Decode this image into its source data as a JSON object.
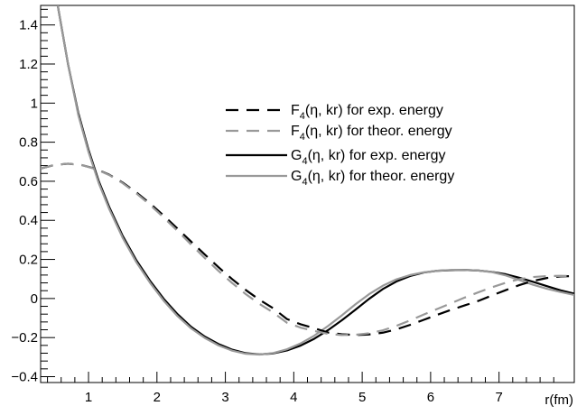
{
  "chart_data": {
    "type": "line",
    "title": "",
    "xlabel": "r(fm)",
    "ylabel": "",
    "xlim": [
      0.3,
      8.1
    ],
    "ylim": [
      -0.43,
      1.5
    ],
    "x_ticks": [
      1,
      2,
      3,
      4,
      5,
      6,
      7
    ],
    "x_tick_labels": [
      "1",
      "2",
      "3",
      "4",
      "5",
      "6",
      "7"
    ],
    "y_ticks": [
      -0.4,
      -0.2,
      0,
      0.2,
      0.4,
      0.6,
      0.8,
      1,
      1.2,
      1.4
    ],
    "y_tick_labels": [
      "−0.4",
      "−0.2",
      "0",
      "0.2",
      "0.4",
      "0.6",
      "0.8",
      "1",
      "1.2",
      "1.4"
    ],
    "grid": false,
    "legend_position": "upper-right",
    "series": [
      {
        "name_main": "F",
        "name_sub": "4",
        "name_rest": "(η, kr) for exp. energy",
        "color": "#000000",
        "dash": "dashed",
        "x": [
          0.3,
          0.5,
          0.7,
          0.9,
          1.1,
          1.3,
          1.5,
          1.7,
          1.9,
          2.1,
          2.3,
          2.5,
          2.7,
          2.9,
          3.1,
          3.3,
          3.5,
          3.7,
          3.9,
          4.1,
          4.3,
          4.5,
          4.7,
          4.9,
          5.1,
          5.3,
          5.5,
          5.7,
          5.9,
          6.1,
          6.3,
          6.5,
          6.7,
          6.9,
          7.1,
          7.3,
          7.5,
          7.7,
          7.9,
          8.1
        ],
        "y": [
          0.665,
          0.683,
          0.69,
          0.683,
          0.664,
          0.634,
          0.593,
          0.543,
          0.486,
          0.424,
          0.358,
          0.291,
          0.225,
          0.16,
          0.099,
          0.043,
          -0.007,
          -0.05,
          -0.105,
          -0.132,
          -0.152,
          -0.174,
          -0.183,
          -0.187,
          -0.184,
          -0.175,
          -0.158,
          -0.135,
          -0.109,
          -0.083,
          -0.058,
          -0.035,
          -0.012,
          0.016,
          0.043,
          0.069,
          0.09,
          0.105,
          0.113,
          0.115
        ]
      },
      {
        "name_main": "F",
        "name_sub": "4",
        "name_rest": "(η, kr) for theor. energy",
        "color": "#999999",
        "dash": "dashed",
        "x": [
          0.3,
          0.5,
          0.7,
          0.9,
          1.1,
          1.3,
          1.5,
          1.7,
          1.9,
          2.1,
          2.3,
          2.5,
          2.7,
          2.9,
          3.1,
          3.3,
          3.5,
          3.7,
          3.9,
          4.1,
          4.3,
          4.5,
          4.7,
          4.9,
          5.1,
          5.3,
          5.5,
          5.7,
          5.9,
          6.1,
          6.3,
          6.5,
          6.7,
          6.9,
          7.1,
          7.3,
          7.5,
          7.7,
          7.9,
          8.1
        ],
        "y": [
          0.665,
          0.683,
          0.69,
          0.683,
          0.663,
          0.632,
          0.59,
          0.538,
          0.479,
          0.414,
          0.346,
          0.276,
          0.207,
          0.141,
          0.079,
          0.022,
          -0.028,
          -0.072,
          -0.124,
          -0.149,
          -0.166,
          -0.181,
          -0.187,
          -0.186,
          -0.178,
          -0.163,
          -0.14,
          -0.112,
          -0.082,
          -0.053,
          -0.024,
          0.005,
          0.032,
          0.058,
          0.081,
          0.099,
          0.11,
          0.115,
          0.116,
          0.115
        ]
      },
      {
        "name_main": "G",
        "name_sub": "4",
        "name_rest": "(η, kr) for exp. energy",
        "color": "#000000",
        "dash": "solid",
        "x": [
          0.55,
          0.7,
          0.85,
          1.0,
          1.15,
          1.3,
          1.5,
          1.7,
          1.9,
          2.1,
          2.3,
          2.5,
          2.7,
          2.9,
          3.1,
          3.3,
          3.5,
          3.7,
          3.9,
          4.1,
          4.3,
          4.5,
          4.7,
          4.9,
          5.1,
          5.3,
          5.5,
          5.7,
          5.9,
          6.1,
          6.3,
          6.5,
          6.7,
          6.9,
          7.1,
          7.3,
          7.5,
          7.7,
          7.9,
          8.1
        ],
        "y": [
          1.5,
          1.2,
          0.95,
          0.76,
          0.6,
          0.47,
          0.32,
          0.195,
          0.09,
          -0.002,
          -0.08,
          -0.145,
          -0.195,
          -0.233,
          -0.262,
          -0.28,
          -0.286,
          -0.281,
          -0.266,
          -0.241,
          -0.206,
          -0.162,
          -0.112,
          -0.058,
          -0.002,
          0.048,
          0.087,
          0.115,
          0.133,
          0.142,
          0.145,
          0.146,
          0.143,
          0.136,
          0.124,
          0.106,
          0.085,
          0.063,
          0.042,
          0.025
        ]
      },
      {
        "name_main": "G",
        "name_sub": "4",
        "name_rest": "(η, kr) for theor. energy",
        "color": "#999999",
        "dash": "solid",
        "x": [
          0.55,
          0.7,
          0.85,
          1.0,
          1.15,
          1.3,
          1.5,
          1.7,
          1.9,
          2.1,
          2.3,
          2.5,
          2.7,
          2.9,
          3.1,
          3.3,
          3.5,
          3.7,
          3.9,
          4.1,
          4.3,
          4.5,
          4.7,
          4.9,
          5.1,
          5.3,
          5.5,
          5.7,
          5.9,
          6.1,
          6.3,
          6.5,
          6.7,
          6.9,
          7.1,
          7.3,
          7.5,
          7.7,
          7.9,
          8.1
        ],
        "y": [
          1.5,
          1.2,
          0.94,
          0.75,
          0.59,
          0.46,
          0.31,
          0.185,
          0.08,
          -0.012,
          -0.09,
          -0.153,
          -0.202,
          -0.24,
          -0.267,
          -0.283,
          -0.287,
          -0.279,
          -0.26,
          -0.23,
          -0.19,
          -0.141,
          -0.087,
          -0.03,
          0.022,
          0.065,
          0.098,
          0.12,
          0.134,
          0.142,
          0.146,
          0.146,
          0.143,
          0.135,
          0.118,
          0.094,
          0.07,
          0.05,
          0.033,
          0.018
        ]
      }
    ]
  }
}
